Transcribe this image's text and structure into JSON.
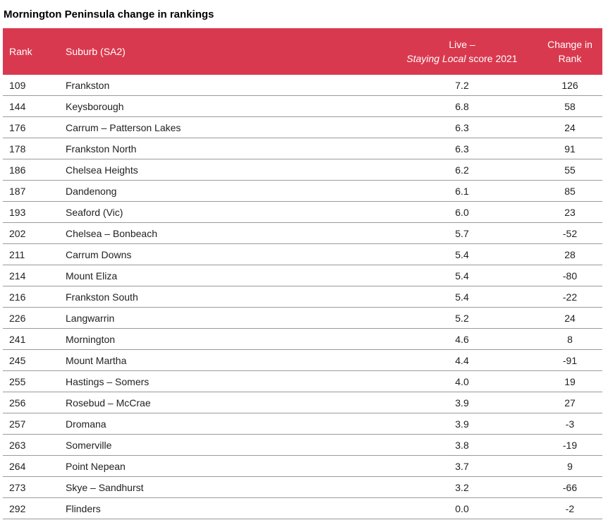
{
  "title": "Mornington Peninsula change in rankings",
  "colors": {
    "header_background": "#d9394e",
    "header_text": "#ffffff",
    "row_divider": "#9a9a9a"
  },
  "table": {
    "headers": {
      "rank": "Rank",
      "suburb": "Suburb (SA2)",
      "score_part1": "Live – ",
      "score_part2_italic": "Staying Local",
      "score_part3": " score 2021",
      "change": "Change in Rank"
    },
    "rows": [
      {
        "rank": "109",
        "suburb": "Frankston",
        "score": "7.2",
        "change": "126"
      },
      {
        "rank": "144",
        "suburb": "Keysborough",
        "score": "6.8",
        "change": "58"
      },
      {
        "rank": "176",
        "suburb": "Carrum – Patterson Lakes",
        "score": "6.3",
        "change": "24"
      },
      {
        "rank": "178",
        "suburb": "Frankston North",
        "score": "6.3",
        "change": "91"
      },
      {
        "rank": "186",
        "suburb": "Chelsea Heights",
        "score": "6.2",
        "change": "55"
      },
      {
        "rank": "187",
        "suburb": "Dandenong",
        "score": "6.1",
        "change": "85"
      },
      {
        "rank": "193",
        "suburb": "Seaford (Vic)",
        "score": "6.0",
        "change": "23"
      },
      {
        "rank": "202",
        "suburb": "Chelsea – Bonbeach",
        "score": "5.7",
        "change": "-52"
      },
      {
        "rank": "211",
        "suburb": "Carrum Downs",
        "score": "5.4",
        "change": "28"
      },
      {
        "rank": "214",
        "suburb": "Mount Eliza",
        "score": "5.4",
        "change": "-80"
      },
      {
        "rank": "216",
        "suburb": "Frankston South",
        "score": "5.4",
        "change": "-22"
      },
      {
        "rank": "226",
        "suburb": "Langwarrin",
        "score": "5.2",
        "change": "24"
      },
      {
        "rank": "241",
        "suburb": "Mornington",
        "score": "4.6",
        "change": "8"
      },
      {
        "rank": "245",
        "suburb": "Mount Martha",
        "score": "4.4",
        "change": "-91"
      },
      {
        "rank": "255",
        "suburb": "Hastings – Somers",
        "score": "4.0",
        "change": "19"
      },
      {
        "rank": "256",
        "suburb": "Rosebud – McCrae",
        "score": "3.9",
        "change": "27"
      },
      {
        "rank": "257",
        "suburb": "Dromana",
        "score": "3.9",
        "change": "-3"
      },
      {
        "rank": "263",
        "suburb": "Somerville",
        "score": "3.8",
        "change": "-19"
      },
      {
        "rank": "264",
        "suburb": "Point Nepean",
        "score": "3.7",
        "change": "9"
      },
      {
        "rank": "273",
        "suburb": "Skye – Sandhurst",
        "score": "3.2",
        "change": "-66"
      },
      {
        "rank": "292",
        "suburb": "Flinders",
        "score": "0.0",
        "change": "-2"
      }
    ]
  }
}
